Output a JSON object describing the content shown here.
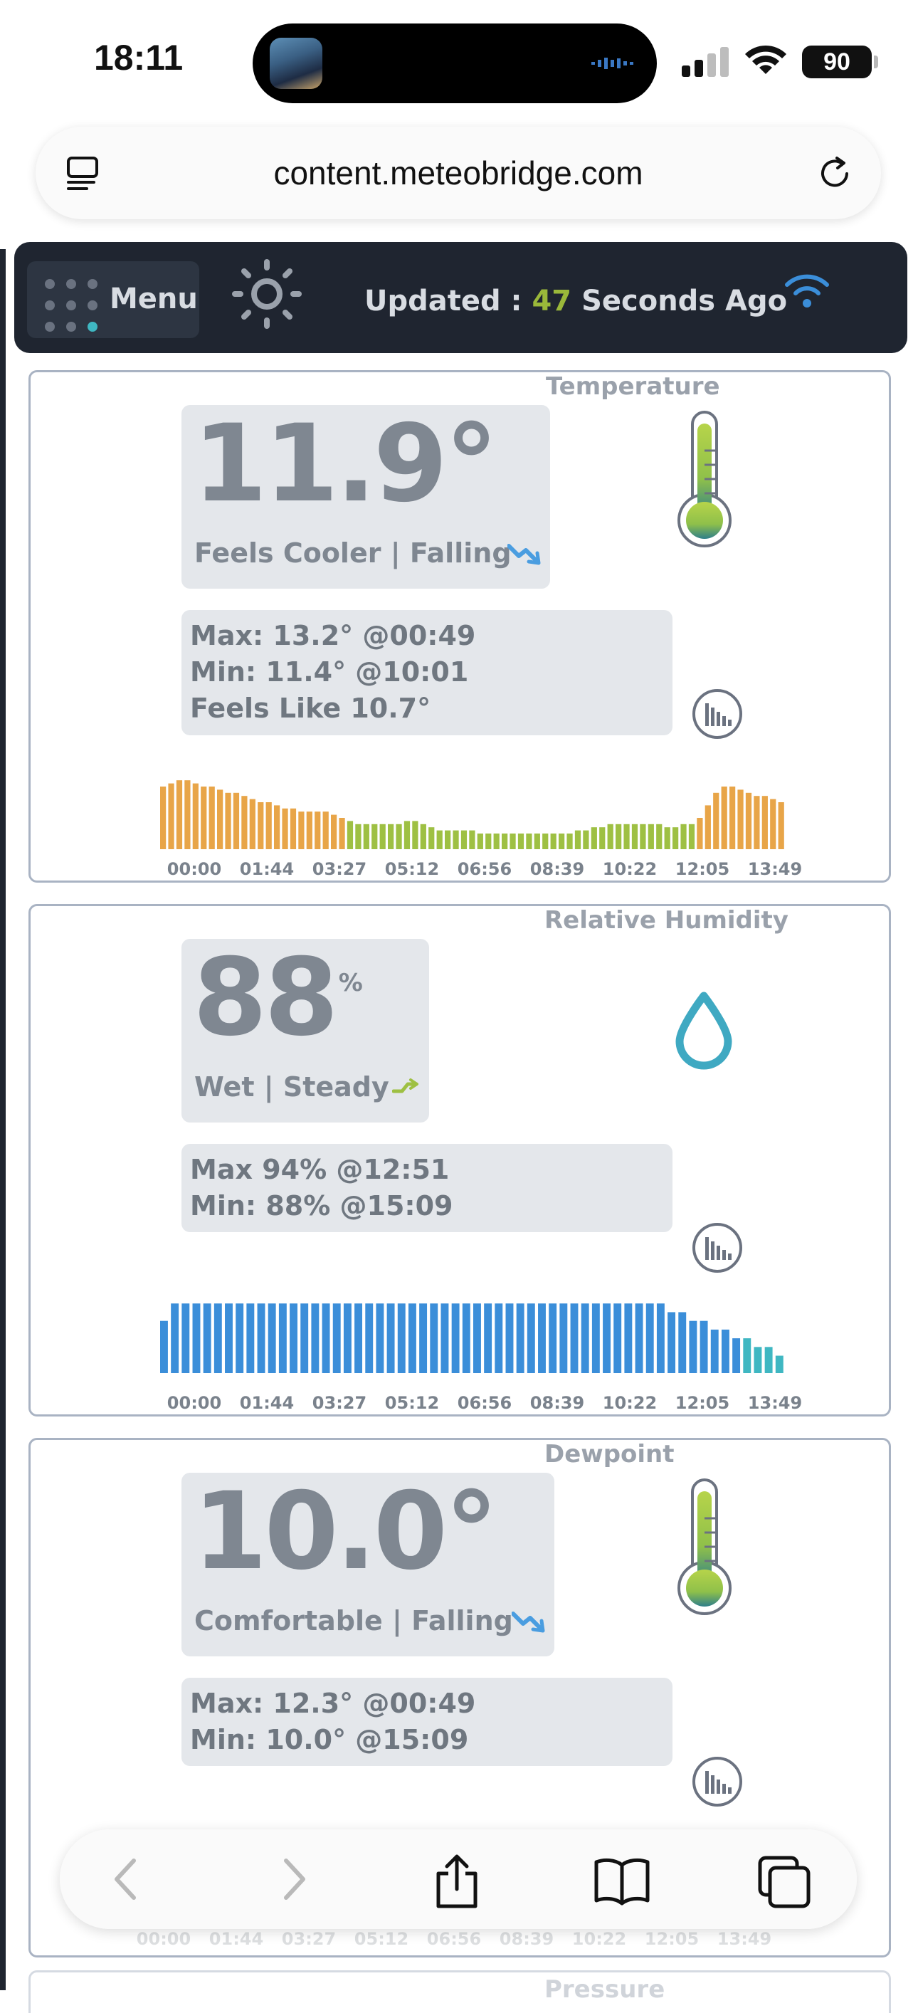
{
  "status_bar": {
    "time": "18:11",
    "battery": "90"
  },
  "browser": {
    "url": "content.meteobridge.com"
  },
  "nav": {
    "menu_label": "Menu",
    "updated_prefix": "Updated : ",
    "updated_seconds": "47",
    "updated_suffix": " Seconds Ago"
  },
  "colors": {
    "warm": "#e8a548",
    "mild": "#9ec043",
    "humidity": "#3b8ed9",
    "humidity_low": "#3fb7c2",
    "accent": "#9ab83a",
    "trend": "#4a9de0"
  },
  "x_ticks": [
    "00:00",
    "01:44",
    "03:27",
    "05:12",
    "06:56",
    "08:39",
    "10:22",
    "12:05",
    "13:49"
  ],
  "temperature": {
    "title": "Temperature",
    "value": "11.9°",
    "status": "Feels Cooler | Falling",
    "trend_icon": "trend-down-icon",
    "max": "Max: 13.2° @00:49",
    "min": "Min: 11.4° @10:01",
    "feels_like": "Feels Like 10.7°"
  },
  "humidity": {
    "title": "Relative Humidity",
    "value": "88",
    "unit": "%",
    "status": "Wet | Steady",
    "trend_icon": "trend-steady-icon",
    "max": "Max 94% @12:51",
    "min": "Min: 88% @15:09"
  },
  "dewpoint": {
    "title": "Dewpoint",
    "value": "10.0°",
    "status": "Comfortable | Falling",
    "trend_icon": "trend-down-icon",
    "max": "Max: 12.3° @00:49",
    "min": "Min: 10.0° @15:09"
  },
  "next_panel": {
    "title": "Pressure"
  },
  "chart_data": [
    {
      "type": "bar",
      "title": "Temperature",
      "x_tick_labels": [
        "00:00",
        "01:44",
        "03:27",
        "05:12",
        "06:56",
        "08:39",
        "10:22",
        "12:05",
        "13:49"
      ],
      "values": [
        13.0,
        13.1,
        13.2,
        13.2,
        13.1,
        13.0,
        13.0,
        12.9,
        12.8,
        12.8,
        12.7,
        12.6,
        12.5,
        12.5,
        12.4,
        12.3,
        12.3,
        12.2,
        12.2,
        12.2,
        12.2,
        12.1,
        12.0,
        11.9,
        11.8,
        11.8,
        11.8,
        11.8,
        11.8,
        11.8,
        11.9,
        11.9,
        11.8,
        11.7,
        11.6,
        11.6,
        11.6,
        11.6,
        11.6,
        11.5,
        11.5,
        11.5,
        11.5,
        11.5,
        11.5,
        11.5,
        11.5,
        11.5,
        11.5,
        11.5,
        11.5,
        11.6,
        11.6,
        11.7,
        11.7,
        11.8,
        11.8,
        11.8,
        11.8,
        11.8,
        11.8,
        11.8,
        11.7,
        11.7,
        11.8,
        11.8,
        12.0,
        12.4,
        12.8,
        13.0,
        13.0,
        12.9,
        12.8,
        12.7,
        12.7,
        12.6,
        12.5
      ],
      "colors": [
        "#e8a548",
        "#e8a548",
        "#e8a548",
        "#e8a548",
        "#e8a548",
        "#e8a548",
        "#e8a548",
        "#e8a548",
        "#e8a548",
        "#e8a548",
        "#e8a548",
        "#e8a548",
        "#e8a548",
        "#e8a548",
        "#e8a548",
        "#e8a548",
        "#e8a548",
        "#e8a548",
        "#e8a548",
        "#e8a548",
        "#e8a548",
        "#e8a548",
        "#e8a548",
        "#9ec043",
        "#9ec043",
        "#9ec043",
        "#9ec043",
        "#9ec043",
        "#9ec043",
        "#9ec043",
        "#9ec043",
        "#9ec043",
        "#9ec043",
        "#9ec043",
        "#9ec043",
        "#9ec043",
        "#9ec043",
        "#9ec043",
        "#9ec043",
        "#9ec043",
        "#9ec043",
        "#9ec043",
        "#9ec043",
        "#9ec043",
        "#9ec043",
        "#9ec043",
        "#9ec043",
        "#9ec043",
        "#9ec043",
        "#9ec043",
        "#9ec043",
        "#9ec043",
        "#9ec043",
        "#9ec043",
        "#9ec043",
        "#9ec043",
        "#9ec043",
        "#9ec043",
        "#9ec043",
        "#9ec043",
        "#9ec043",
        "#9ec043",
        "#9ec043",
        "#9ec043",
        "#9ec043",
        "#9ec043",
        "#e8a548",
        "#e8a548",
        "#e8a548",
        "#e8a548",
        "#e8a548",
        "#e8a548",
        "#e8a548",
        "#e8a548",
        "#e8a548",
        "#e8a548",
        "#e8a548"
      ],
      "ylim": [
        11,
        13.5
      ]
    },
    {
      "type": "bar",
      "title": "Relative Humidity",
      "x_tick_labels": [
        "00:00",
        "01:44",
        "03:27",
        "05:12",
        "06:56",
        "08:39",
        "10:22",
        "12:05",
        "13:49"
      ],
      "values": [
        92,
        94,
        94,
        94,
        94,
        94,
        94,
        94,
        94,
        94,
        94,
        94,
        94,
        94,
        94,
        94,
        94,
        94,
        94,
        94,
        94,
        94,
        94,
        94,
        94,
        94,
        94,
        94,
        94,
        94,
        94,
        94,
        94,
        94,
        94,
        94,
        94,
        94,
        94,
        94,
        94,
        94,
        94,
        94,
        94,
        94,
        94,
        93,
        93,
        92,
        92,
        91,
        91,
        90,
        90,
        89,
        89,
        88
      ],
      "colors": [
        "#3b8ed9",
        "#3b8ed9",
        "#3b8ed9",
        "#3b8ed9",
        "#3b8ed9",
        "#3b8ed9",
        "#3b8ed9",
        "#3b8ed9",
        "#3b8ed9",
        "#3b8ed9",
        "#3b8ed9",
        "#3b8ed9",
        "#3b8ed9",
        "#3b8ed9",
        "#3b8ed9",
        "#3b8ed9",
        "#3b8ed9",
        "#3b8ed9",
        "#3b8ed9",
        "#3b8ed9",
        "#3b8ed9",
        "#3b8ed9",
        "#3b8ed9",
        "#3b8ed9",
        "#3b8ed9",
        "#3b8ed9",
        "#3b8ed9",
        "#3b8ed9",
        "#3b8ed9",
        "#3b8ed9",
        "#3b8ed9",
        "#3b8ed9",
        "#3b8ed9",
        "#3b8ed9",
        "#3b8ed9",
        "#3b8ed9",
        "#3b8ed9",
        "#3b8ed9",
        "#3b8ed9",
        "#3b8ed9",
        "#3b8ed9",
        "#3b8ed9",
        "#3b8ed9",
        "#3b8ed9",
        "#3b8ed9",
        "#3b8ed9",
        "#3b8ed9",
        "#3b8ed9",
        "#3b8ed9",
        "#3b8ed9",
        "#3b8ed9",
        "#3b8ed9",
        "#3b8ed9",
        "#3b8ed9",
        "#3fb7c2",
        "#3fb7c2",
        "#3fb7c2",
        "#3fb7c2"
      ],
      "ylim": [
        86,
        95
      ]
    }
  ]
}
